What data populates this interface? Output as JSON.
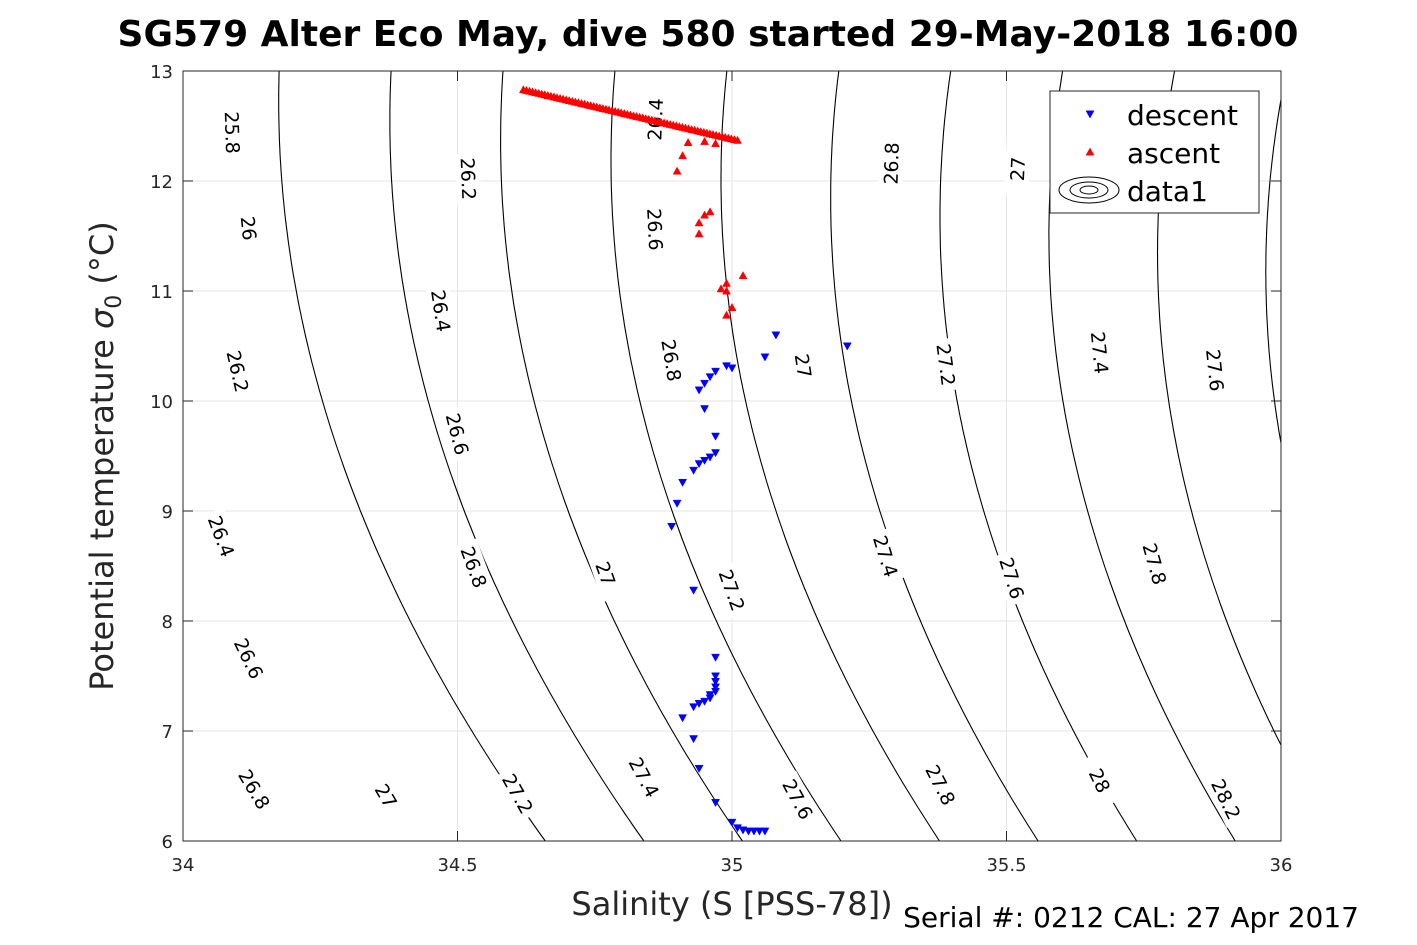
{
  "chart_data": {
    "type": "scatter",
    "title": "SG579 Alter Eco May, dive 580 started 29-May-2018 16:00",
    "xlabel": "Salinity (S [PSS-78])",
    "ylabel_text": "Potential temperature ",
    "ylabel_symbol": "σ",
    "ylabel_subscript": "0",
    "ylabel_unit": " (°C)",
    "footer": "Serial #: 0212  CAL: 27 Apr 2017",
    "xlim": [
      34,
      36
    ],
    "ylim": [
      6,
      13
    ],
    "xticks": [
      34,
      34.5,
      35,
      35.5,
      36
    ],
    "xtick_labels": [
      "34",
      "34.5",
      "35",
      "35.5",
      "36"
    ],
    "yticks": [
      6,
      7,
      8,
      9,
      10,
      11,
      12,
      13
    ],
    "ytick_labels": [
      "6",
      "7",
      "8",
      "9",
      "10",
      "11",
      "12",
      "13"
    ],
    "grid": true,
    "legend_position": "top-right",
    "series": [
      {
        "name": "descent",
        "marker": "triangle-down",
        "color": "#0000ff",
        "points": [
          [
            35.21,
            10.5
          ],
          [
            35.08,
            10.6
          ],
          [
            35.06,
            10.4
          ],
          [
            35.0,
            10.3
          ],
          [
            34.99,
            10.32
          ],
          [
            34.97,
            10.27
          ],
          [
            34.96,
            10.22
          ],
          [
            34.95,
            10.16
          ],
          [
            34.94,
            10.1
          ],
          [
            34.95,
            9.93
          ],
          [
            34.97,
            9.68
          ],
          [
            34.97,
            9.53
          ],
          [
            34.96,
            9.49
          ],
          [
            34.95,
            9.46
          ],
          [
            34.94,
            9.43
          ],
          [
            34.93,
            9.37
          ],
          [
            34.91,
            9.26
          ],
          [
            34.9,
            9.07
          ],
          [
            34.89,
            8.86
          ],
          [
            34.93,
            8.28
          ],
          [
            34.97,
            7.67
          ],
          [
            34.97,
            7.5
          ],
          [
            34.97,
            7.45
          ],
          [
            34.97,
            7.4
          ],
          [
            34.97,
            7.36
          ],
          [
            34.96,
            7.33
          ],
          [
            34.96,
            7.3
          ],
          [
            34.95,
            7.27
          ],
          [
            34.94,
            7.25
          ],
          [
            34.93,
            7.22
          ],
          [
            34.91,
            7.12
          ],
          [
            34.93,
            6.93
          ],
          [
            34.94,
            6.66
          ],
          [
            34.97,
            6.35
          ],
          [
            35.0,
            6.17
          ],
          [
            35.01,
            6.12
          ],
          [
            35.02,
            6.1
          ],
          [
            35.03,
            6.09
          ],
          [
            35.04,
            6.09
          ],
          [
            35.05,
            6.09
          ],
          [
            35.06,
            6.09
          ]
        ]
      },
      {
        "name": "ascent",
        "marker": "triangle-up",
        "color": "#ff0000",
        "points": [
          [
            34.9,
            12.09
          ],
          [
            34.91,
            12.23
          ],
          [
            34.92,
            12.35
          ],
          [
            34.95,
            12.36
          ],
          [
            34.97,
            12.34
          ],
          [
            34.94,
            11.62
          ],
          [
            34.95,
            11.69
          ],
          [
            34.96,
            11.72
          ],
          [
            34.94,
            11.52
          ],
          [
            34.98,
            11.02
          ],
          [
            34.99,
            11.07
          ],
          [
            34.99,
            11.0
          ],
          [
            35.02,
            11.14
          ],
          [
            34.99,
            10.78
          ],
          [
            35.0,
            10.85
          ]
        ],
        "line_trail": {
          "from": [
            34.62,
            12.83
          ],
          "to": [
            35.01,
            12.37
          ]
        }
      },
      {
        "name": "data1",
        "marker": "contour",
        "color": "#000000"
      }
    ],
    "isopycnals": [
      {
        "value": 25.8,
        "labels": [
          [
            34.09,
            12.44
          ]
        ]
      },
      {
        "value": 26,
        "labels": [
          [
            34.12,
            11.57
          ]
        ]
      },
      {
        "value": 26.2,
        "labels": [
          [
            34.1,
            10.27
          ],
          [
            34.52,
            12.02
          ]
        ]
      },
      {
        "value": 26.4,
        "labels": [
          [
            34.07,
            8.77
          ],
          [
            34.47,
            10.82
          ],
          [
            34.86,
            12.56
          ]
        ]
      },
      {
        "value": 26.6,
        "labels": [
          [
            34.12,
            7.66
          ],
          [
            34.5,
            9.7
          ],
          [
            34.86,
            11.56
          ]
        ]
      },
      {
        "value": 26.8,
        "labels": [
          [
            34.13,
            6.47
          ],
          [
            34.53,
            8.49
          ],
          [
            34.89,
            10.37
          ],
          [
            35.29,
            12.16
          ]
        ]
      },
      {
        "value": 27,
        "labels": [
          [
            34.37,
            6.41
          ],
          [
            34.77,
            8.43
          ],
          [
            35.13,
            10.32
          ],
          [
            35.52,
            12.11
          ]
        ]
      },
      {
        "value": 27.2,
        "labels": [
          [
            34.61,
            6.43
          ],
          [
            35.0,
            8.28
          ],
          [
            35.39,
            10.33
          ]
        ]
      },
      {
        "value": 27.4,
        "labels": [
          [
            34.84,
            6.58
          ],
          [
            35.28,
            8.59
          ],
          [
            35.67,
            10.44
          ]
        ]
      },
      {
        "value": 27.6,
        "labels": [
          [
            35.12,
            6.38
          ],
          [
            35.51,
            8.39
          ],
          [
            35.88,
            10.28
          ]
        ]
      },
      {
        "value": 27.8,
        "labels": [
          [
            35.38,
            6.51
          ],
          [
            35.77,
            8.52
          ]
        ]
      },
      {
        "value": 28,
        "labels": [
          [
            35.67,
            6.55
          ]
        ]
      },
      {
        "value": 28.2,
        "labels": [
          [
            35.9,
            6.38
          ]
        ]
      }
    ]
  }
}
